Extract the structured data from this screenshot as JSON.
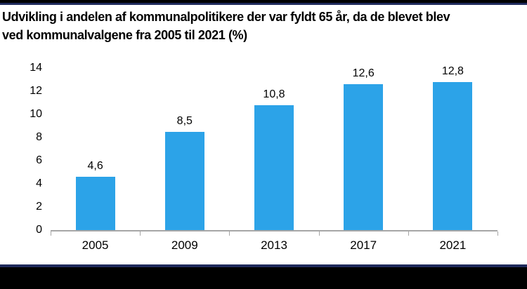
{
  "header": {
    "title_line1": "Udvikling i andelen af kommunalpolitikere der var fyldt 65 år, da de blevet blev",
    "title_line2": "ved kommunalvalgene fra 2005 til 2021 (%)"
  },
  "chart_data": {
    "type": "bar",
    "title": "Udvikling i andelen af kommunalpolitikere der var fyldt 65 år, da de blevet blev ved kommunalvalgene fra 2005 til 2021 (%)",
    "categories": [
      "2005",
      "2009",
      "2013",
      "2017",
      "2021"
    ],
    "values": [
      4.6,
      8.5,
      10.8,
      12.6,
      12.8
    ],
    "value_labels": [
      "4,6",
      "8,5",
      "10,8",
      "12,6",
      "12,8"
    ],
    "xlabel": "",
    "ylabel": "",
    "ylim": [
      0,
      14
    ],
    "y_ticks": [
      0,
      2,
      4,
      6,
      8,
      10,
      12,
      14
    ],
    "grid": false,
    "legend": false,
    "bar_color": "#2ca3e8",
    "axis_color": "#a6a6a6",
    "label_color": "#000000"
  },
  "decor": {
    "top_band_color": "#000000",
    "accent_line_color": "#1f2a5c",
    "bottom_band_color": "#000000"
  }
}
